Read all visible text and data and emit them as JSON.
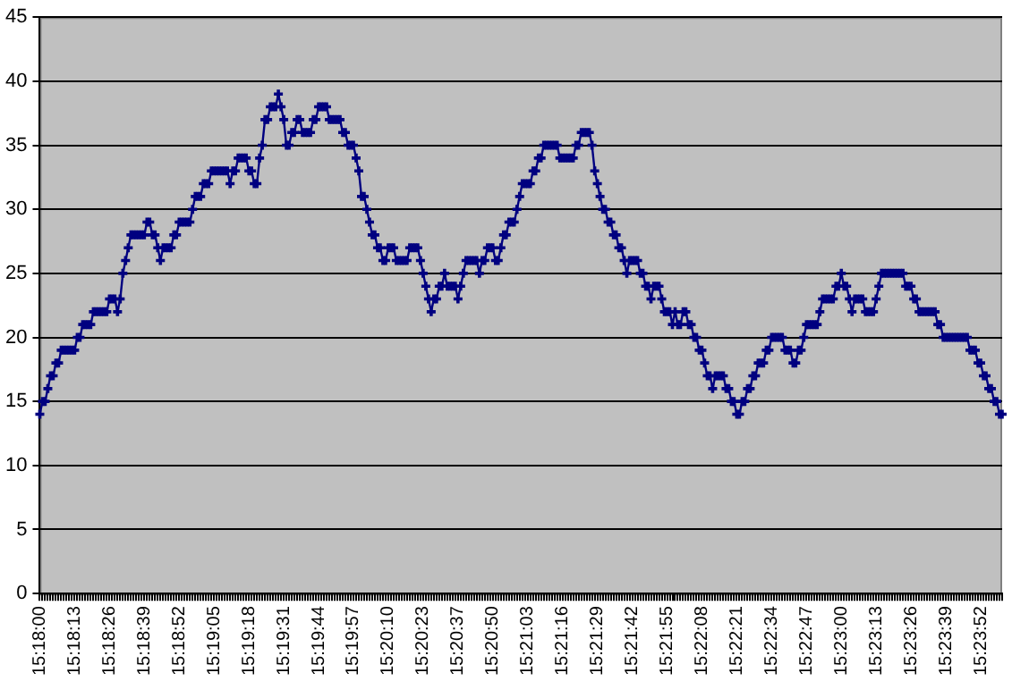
{
  "chart_data": {
    "type": "line",
    "marker": "cross",
    "line_style": "solid",
    "grid": "y",
    "legend": false,
    "categories": [
      "15:18:00",
      null,
      null,
      null,
      null,
      null,
      null,
      null,
      null,
      null,
      null,
      null,
      null,
      "15:18:13",
      null,
      null,
      null,
      null,
      null,
      null,
      null,
      null,
      null,
      null,
      null,
      null,
      "15:18:26",
      null,
      null,
      null,
      null,
      null,
      null,
      null,
      null,
      null,
      null,
      null,
      null,
      "15:18:39",
      null,
      null,
      null,
      null,
      null,
      null,
      null,
      null,
      null,
      null,
      null,
      null,
      "15:18:52",
      null,
      null,
      null,
      null,
      null,
      null,
      null,
      null,
      null,
      null,
      null,
      null,
      "15:19:05",
      null,
      null,
      null,
      null,
      null,
      null,
      null,
      null,
      null,
      null,
      null,
      null,
      "15:19:18",
      null,
      null,
      null,
      null,
      null,
      null,
      null,
      null,
      null,
      null,
      null,
      null,
      "15:19:31",
      null,
      null,
      null,
      null,
      null,
      null,
      null,
      null,
      null,
      null,
      null,
      null,
      "15:19:44",
      null,
      null,
      null,
      null,
      null,
      null,
      null,
      null,
      null,
      null,
      null,
      null,
      "15:19:57",
      null,
      null,
      null,
      null,
      null,
      null,
      null,
      null,
      null,
      null,
      null,
      null,
      "15:20:10",
      null,
      null,
      null,
      null,
      null,
      null,
      null,
      null,
      null,
      null,
      null,
      null,
      "15:20:23",
      null,
      null,
      null,
      null,
      null,
      null,
      null,
      null,
      null,
      null,
      null,
      null,
      "15:20:37",
      null,
      null,
      null,
      null,
      null,
      null,
      null,
      null,
      null,
      null,
      null,
      null,
      "15:20:50",
      null,
      null,
      null,
      null,
      null,
      null,
      null,
      null,
      null,
      null,
      null,
      null,
      "15:21:03",
      null,
      null,
      null,
      null,
      null,
      null,
      null,
      null,
      null,
      null,
      null,
      null,
      "15:21:16",
      null,
      null,
      null,
      null,
      null,
      null,
      null,
      null,
      null,
      null,
      null,
      null,
      "15:21:29",
      null,
      null,
      null,
      null,
      null,
      null,
      null,
      null,
      null,
      null,
      null,
      null,
      "15:21:42",
      null,
      null,
      null,
      null,
      null,
      null,
      null,
      null,
      null,
      null,
      null,
      null,
      "15:21:55",
      null,
      null,
      null,
      null,
      null,
      null,
      null,
      null,
      null,
      null,
      null,
      null,
      "15:22:08",
      null,
      null,
      null,
      null,
      null,
      null,
      null,
      null,
      null,
      null,
      null,
      null,
      "15:22:21",
      null,
      null,
      null,
      null,
      null,
      null,
      null,
      null,
      null,
      null,
      null,
      null,
      "15:22:34",
      null,
      null,
      null,
      null,
      null,
      null,
      null,
      null,
      null,
      null,
      null,
      null,
      "15:22:47",
      null,
      null,
      null,
      null,
      null,
      null,
      null,
      null,
      null,
      null,
      null,
      null,
      "15:23:00",
      null,
      null,
      null,
      null,
      null,
      null,
      null,
      null,
      null,
      null,
      null,
      null,
      "15:23:13",
      null,
      null,
      null,
      null,
      null,
      null,
      null,
      null,
      null,
      null,
      null,
      null,
      "15:23:26",
      null,
      null,
      null,
      null,
      null,
      null,
      null,
      null,
      null,
      null,
      null,
      null,
      "15:23:39",
      null,
      null,
      null,
      null,
      null,
      null,
      null,
      null,
      null,
      null,
      null,
      null,
      "15:23:52",
      null,
      null,
      null,
      null,
      null,
      null,
      null,
      null
    ],
    "series": [
      {
        "color": "#000080",
        "values": [
          14,
          15,
          15,
          16,
          17,
          17,
          18,
          18,
          19,
          19,
          19,
          19,
          19,
          19,
          20,
          20,
          21,
          21,
          21,
          21,
          22,
          22,
          22,
          22,
          22,
          22,
          23,
          23,
          23,
          22,
          23,
          25,
          26,
          27,
          28,
          28,
          28,
          28,
          28,
          28,
          29,
          29,
          28,
          28,
          27,
          26,
          27,
          27,
          27,
          27,
          28,
          28,
          29,
          29,
          29,
          29,
          29,
          30,
          31,
          31,
          31,
          32,
          32,
          32,
          33,
          33,
          33,
          33,
          33,
          33,
          33,
          32,
          33,
          33,
          34,
          34,
          34,
          34,
          33,
          33,
          32,
          32,
          34,
          35,
          37,
          37,
          38,
          38,
          38,
          39,
          38,
          37,
          35,
          35,
          36,
          36,
          37,
          37,
          36,
          36,
          36,
          36,
          37,
          37,
          38,
          38,
          38,
          38,
          37,
          37,
          37,
          37,
          37,
          36,
          36,
          35,
          35,
          35,
          34,
          33,
          31,
          31,
          30,
          29,
          28,
          28,
          27,
          27,
          26,
          26,
          27,
          27,
          27,
          26,
          26,
          26,
          26,
          26,
          27,
          27,
          27,
          27,
          26,
          25,
          24,
          23,
          22,
          23,
          23,
          24,
          24,
          25,
          24,
          24,
          24,
          24,
          23,
          24,
          25,
          26,
          26,
          26,
          26,
          26,
          25,
          26,
          26,
          27,
          27,
          27,
          26,
          26,
          27,
          28,
          28,
          29,
          29,
          29,
          30,
          31,
          32,
          32,
          32,
          32,
          33,
          33,
          34,
          34,
          35,
          35,
          35,
          35,
          35,
          35,
          34,
          34,
          34,
          34,
          34,
          34,
          35,
          35,
          36,
          36,
          36,
          36,
          35,
          33,
          32,
          31,
          30,
          30,
          29,
          29,
          28,
          28,
          27,
          27,
          26,
          25,
          26,
          26,
          26,
          26,
          25,
          25,
          24,
          24,
          23,
          24,
          24,
          24,
          23,
          22,
          22,
          22,
          21,
          22,
          21,
          21,
          22,
          22,
          21,
          21,
          20,
          20,
          19,
          19,
          18,
          17,
          17,
          16,
          17,
          17,
          17,
          17,
          16,
          16,
          15,
          15,
          14,
          14,
          15,
          15,
          16,
          16,
          17,
          17,
          18,
          18,
          18,
          19,
          19,
          20,
          20,
          20,
          20,
          20,
          19,
          19,
          19,
          18,
          18,
          19,
          19,
          20,
          21,
          21,
          21,
          21,
          21,
          22,
          23,
          23,
          23,
          23,
          23,
          24,
          24,
          25,
          24,
          24,
          23,
          22,
          23,
          23,
          23,
          23,
          22,
          22,
          22,
          22,
          23,
          24,
          25,
          25,
          25,
          25,
          25,
          25,
          25,
          25,
          25,
          24,
          24,
          24,
          23,
          23,
          22,
          22,
          22,
          22,
          22,
          22,
          22,
          21,
          21,
          20,
          20,
          20,
          20,
          20,
          20,
          20,
          20,
          20,
          20,
          19,
          19,
          19,
          18,
          18,
          17,
          17,
          16,
          16,
          15,
          15,
          14,
          14
        ]
      }
    ],
    "ylim": [
      0,
      45
    ],
    "yticks": [
      0,
      5,
      10,
      15,
      20,
      25,
      30,
      35,
      40,
      45
    ]
  }
}
